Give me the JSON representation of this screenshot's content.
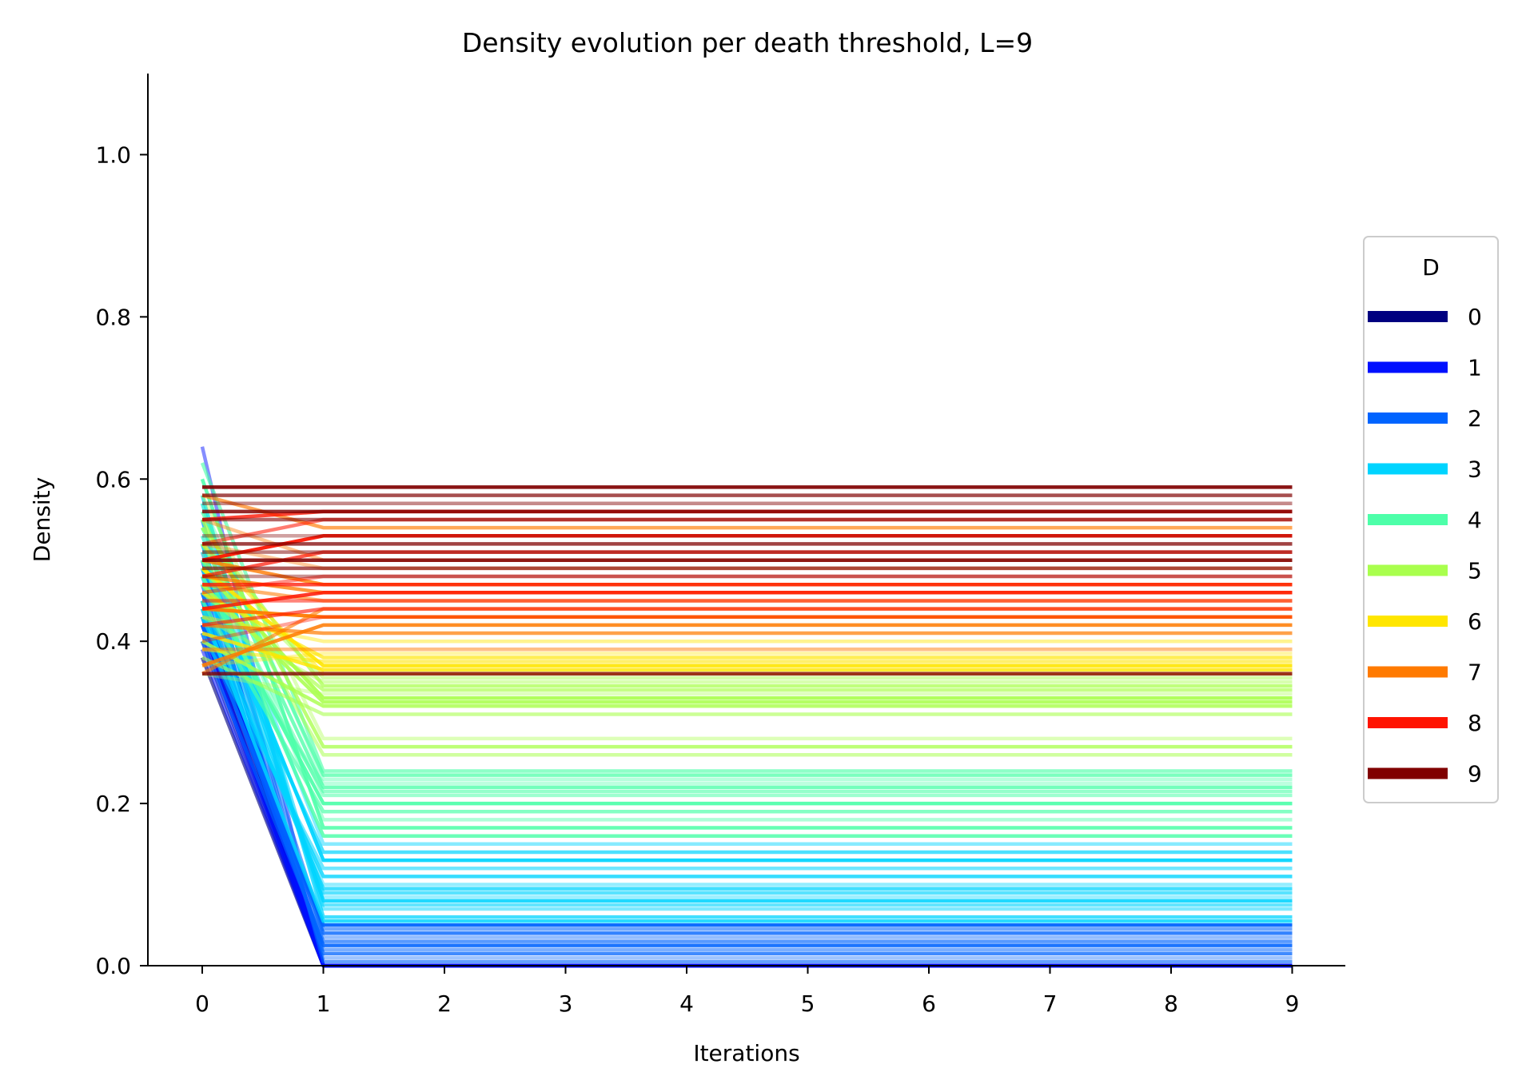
{
  "chart_data": {
    "type": "line",
    "title": "Density evolution per death threshold, L=9",
    "xlabel": "Iterations",
    "ylabel": "Density",
    "x": [
      0,
      1,
      2,
      3,
      4,
      5,
      6,
      7,
      8,
      9
    ],
    "xlim": [
      -0.45,
      9.45
    ],
    "ylim": [
      0,
      1.1
    ],
    "xticks": [
      "0",
      "1",
      "2",
      "3",
      "4",
      "5",
      "6",
      "7",
      "8",
      "9"
    ],
    "yticks": [
      "0.0",
      "0.2",
      "0.4",
      "0.6",
      "0.8",
      "1.0"
    ],
    "grid": false,
    "legend": {
      "title": "D",
      "placement": "center-right, outside plot",
      "entries": [
        {
          "label": "0",
          "color": "#000080"
        },
        {
          "label": "1",
          "color": "#0010ff"
        },
        {
          "label": "2",
          "color": "#0064ff"
        },
        {
          "label": "3",
          "color": "#00d4ff"
        },
        {
          "label": "4",
          "color": "#4dffa9"
        },
        {
          "label": "5",
          "color": "#a9ff4d"
        },
        {
          "label": "6",
          "color": "#ffe600"
        },
        {
          "label": "7",
          "color": "#ff7a00"
        },
        {
          "label": "8",
          "color": "#ff1300"
        },
        {
          "label": "9",
          "color": "#800000"
        }
      ]
    },
    "series_note": "many runs per threshold D; each run: initial density at iteration 0, stable density from iteration 1 to 9",
    "series": [
      {
        "D": 0,
        "start": [
          0.44,
          0.42,
          0.4,
          0.45,
          0.38,
          0.43
        ],
        "end": [
          0,
          0,
          0,
          0,
          0,
          0
        ]
      },
      {
        "D": 1,
        "start": [
          0.64,
          0.5,
          0.47,
          0.44,
          0.41,
          0.39,
          0.46,
          0.42
        ],
        "end": [
          0,
          0,
          0,
          0,
          0,
          0,
          0,
          0
        ]
      },
      {
        "D": 2,
        "start": [
          0.55,
          0.52,
          0.49,
          0.46,
          0.43,
          0.4,
          0.48,
          0.45,
          0.51,
          0.42
        ],
        "end": [
          0.005,
          0.01,
          0.015,
          0.02,
          0.025,
          0.03,
          0.035,
          0.04,
          0.045,
          0.05
        ]
      },
      {
        "D": 3,
        "start": [
          0.58,
          0.55,
          0.52,
          0.49,
          0.46,
          0.43,
          0.41,
          0.5,
          0.47,
          0.53,
          0.44,
          0.57,
          0.48,
          0.45
        ],
        "end": [
          0.06,
          0.07,
          0.08,
          0.09,
          0.1,
          0.11,
          0.12,
          0.13,
          0.14,
          0.15,
          0.055,
          0.075,
          0.085,
          0.095
        ]
      },
      {
        "D": 4,
        "start": [
          0.6,
          0.62,
          0.57,
          0.54,
          0.51,
          0.48,
          0.45,
          0.53,
          0.5,
          0.47,
          0.44,
          0.56
        ],
        "end": [
          0.17,
          0.24,
          0.23,
          0.22,
          0.21,
          0.2,
          0.19,
          0.18,
          0.16,
          0.215,
          0.225,
          0.235
        ]
      },
      {
        "D": 5,
        "start": [
          0.58,
          0.55,
          0.52,
          0.49,
          0.46,
          0.43,
          0.4,
          0.38,
          0.36,
          0.54,
          0.5,
          0.47
        ],
        "end": [
          0.28,
          0.27,
          0.26,
          0.33,
          0.34,
          0.35,
          0.32,
          0.31,
          0.335,
          0.345,
          0.355,
          0.325
        ]
      },
      {
        "D": 6,
        "start": [
          0.52,
          0.49,
          0.46,
          0.43,
          0.41,
          0.39,
          0.37
        ],
        "end": [
          0.36,
          0.37,
          0.38,
          0.4,
          0.365,
          0.375,
          0.385
        ]
      },
      {
        "D": 7,
        "start": [
          0.58,
          0.55,
          0.5,
          0.47,
          0.44,
          0.42,
          0.39,
          0.37,
          0.36,
          0.52,
          0.48
        ],
        "end": [
          0.54,
          0.5,
          0.47,
          0.45,
          0.43,
          0.41,
          0.39,
          0.42,
          0.44,
          0.49,
          0.46
        ]
      },
      {
        "D": 8,
        "start": [
          0.55,
          0.52,
          0.5,
          0.48,
          0.46,
          0.44,
          0.42,
          0.4,
          0.47,
          0.45
        ],
        "end": [
          0.56,
          0.55,
          0.53,
          0.51,
          0.48,
          0.46,
          0.44,
          0.43,
          0.47,
          0.45
        ]
      },
      {
        "D": 9,
        "start": [
          0.59,
          0.58,
          0.57,
          0.56,
          0.55,
          0.53,
          0.52,
          0.51,
          0.5,
          0.49,
          0.48,
          0.36
        ],
        "end": [
          0.59,
          0.58,
          0.57,
          0.56,
          0.55,
          0.53,
          0.52,
          0.51,
          0.5,
          0.49,
          0.48,
          0.36
        ]
      }
    ]
  }
}
